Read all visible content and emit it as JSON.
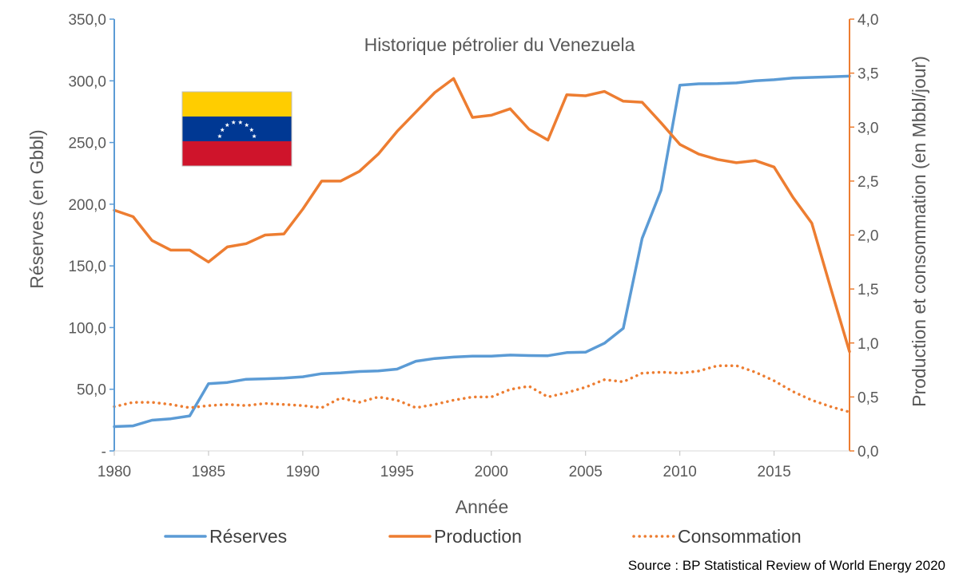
{
  "chart_data": {
    "type": "line",
    "title": "Historique pétrolier du Venezuela",
    "xlabel": "Année",
    "ylabel_left": "Réserves (en Gbbl)",
    "ylabel_right": "Production et consommation (en Mbbl/jour)",
    "xlim": [
      1980,
      2019
    ],
    "ylim_left": [
      0,
      350
    ],
    "ylim_right": [
      0,
      4
    ],
    "x_ticks": [
      "1980",
      "1985",
      "1990",
      "1995",
      "2000",
      "2005",
      "2010",
      "2015"
    ],
    "y_left_ticks": [
      "-",
      "50,0",
      "100,0",
      "150,0",
      "200,0",
      "250,0",
      "300,0",
      "350,0"
    ],
    "y_right_ticks": [
      "0,0",
      "0,5",
      "1,0",
      "1,5",
      "2,0",
      "2,5",
      "3,0",
      "3,5",
      "4,0"
    ],
    "x": [
      1980,
      1981,
      1982,
      1983,
      1984,
      1985,
      1986,
      1987,
      1988,
      1989,
      1990,
      1991,
      1992,
      1993,
      1994,
      1995,
      1996,
      1997,
      1998,
      1999,
      2000,
      2001,
      2002,
      2003,
      2004,
      2005,
      2006,
      2007,
      2008,
      2009,
      2010,
      2011,
      2012,
      2013,
      2014,
      2015,
      2016,
      2017,
      2018,
      2019
    ],
    "series": [
      {
        "name": "Réserves",
        "axis": "left",
        "style": "solid",
        "color": "#5b9bd5",
        "values": [
          19.7,
          20.3,
          24.9,
          26.1,
          28.4,
          54.5,
          55.5,
          58.1,
          58.5,
          59.0,
          60.1,
          62.6,
          63.3,
          64.4,
          64.9,
          66.3,
          72.7,
          74.9,
          76.1,
          76.8,
          76.8,
          77.7,
          77.3,
          77.2,
          79.7,
          80.0,
          87.3,
          99.4,
          172.3,
          211.2,
          296.5,
          297.6,
          297.7,
          298.3,
          300.0,
          300.9,
          302.3,
          302.8,
          303.2,
          303.8
        ]
      },
      {
        "name": "Production",
        "axis": "right",
        "style": "solid",
        "color": "#ed7d31",
        "values": [
          2.23,
          2.17,
          1.95,
          1.86,
          1.86,
          1.75,
          1.89,
          1.92,
          2.0,
          2.01,
          2.24,
          2.5,
          2.5,
          2.59,
          2.75,
          2.96,
          3.14,
          3.32,
          3.45,
          3.09,
          3.11,
          3.17,
          2.98,
          2.88,
          3.3,
          3.29,
          3.33,
          3.24,
          3.23,
          3.04,
          2.84,
          2.75,
          2.7,
          2.67,
          2.69,
          2.63,
          2.35,
          2.11,
          1.51,
          0.92
        ]
      },
      {
        "name": "Consommation",
        "axis": "right",
        "style": "dotted",
        "color": "#ed7d31",
        "values": [
          0.41,
          0.45,
          0.45,
          0.43,
          0.4,
          0.42,
          0.43,
          0.42,
          0.44,
          0.43,
          0.42,
          0.4,
          0.49,
          0.45,
          0.5,
          0.47,
          0.4,
          0.43,
          0.47,
          0.5,
          0.5,
          0.57,
          0.6,
          0.5,
          0.54,
          0.59,
          0.66,
          0.64,
          0.72,
          0.73,
          0.72,
          0.74,
          0.79,
          0.79,
          0.73,
          0.65,
          0.55,
          0.47,
          0.41,
          0.36
        ]
      }
    ],
    "legend_position": "bottom"
  },
  "source": "Source : BP Statistical Review of World Energy 2020",
  "flag": {
    "colors": [
      "#FFCD00",
      "#003893",
      "#CF142B"
    ],
    "star_color": "#ffffff",
    "star_count": 8
  }
}
